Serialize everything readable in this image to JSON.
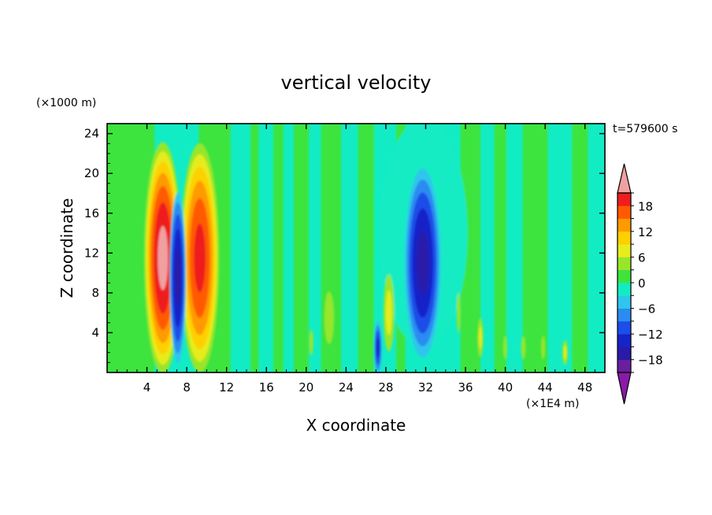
{
  "chart_data": {
    "type": "heatmap",
    "title": "vertical velocity",
    "xlabel": "X coordinate",
    "ylabel": "Z coordinate",
    "x_unit": "(×1E4 m)",
    "y_unit": "(×1000 m)",
    "time_label": "t=579600 s",
    "xlim": [
      0,
      50
    ],
    "ylim": [
      0,
      25
    ],
    "x_ticks": [
      4,
      8,
      12,
      16,
      20,
      24,
      28,
      32,
      36,
      40,
      44,
      48
    ],
    "y_ticks": [
      4,
      8,
      12,
      16,
      20,
      24
    ],
    "colorbar": {
      "levels": [
        -21,
        -18,
        -15,
        -12,
        -9,
        -6,
        -3,
        0,
        3,
        6,
        9,
        12,
        15,
        18,
        21
      ],
      "tick_values": [
        18,
        12,
        6,
        0,
        -6,
        -12,
        -18
      ],
      "tick_labels": [
        "18",
        "12",
        "6",
        "0",
        "−6",
        "−12",
        "−18"
      ],
      "colors": [
        "#6a1f9e",
        "#2a1aa8",
        "#1424c8",
        "#1c4ee8",
        "#2a8cf0",
        "#2ec6ec",
        "#12ecc4",
        "#3ee43c",
        "#98e62a",
        "#e6ec1e",
        "#ffd000",
        "#ff9a00",
        "#ff5a00",
        "#ee1e1e"
      ],
      "under_color": "#8a1aa8",
      "over_color": "#f0a0a0"
    },
    "features": [
      {
        "x": 5.6,
        "z": 11,
        "value": 21,
        "type": "updraft"
      },
      {
        "x": 7.1,
        "z": 9,
        "value": -15,
        "type": "downdraft"
      },
      {
        "x": 9.3,
        "z": 11,
        "value": 18,
        "type": "updraft"
      },
      {
        "x": 27.2,
        "z": 2.5,
        "value": -12,
        "type": "downdraft"
      },
      {
        "x": 28.3,
        "z": 6,
        "value": 6,
        "type": "updraft"
      },
      {
        "x": 31.7,
        "z": 11,
        "value": -15,
        "type": "downdraft"
      }
    ]
  }
}
